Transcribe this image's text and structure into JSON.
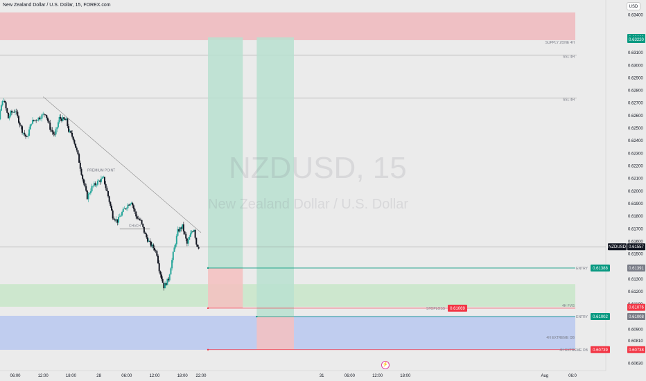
{
  "ui": {
    "currency": "USD",
    "watermark_symbol": "NZDUSD, 15",
    "watermark_desc": "New Zealand Dollar / U.S. Dollar",
    "colors": {
      "background": "#ebebeb",
      "up_candle": "#26a69a",
      "down_candle": "#131722",
      "supply_zone": "#f0b8bd",
      "demand_zone": "#c8e6c9",
      "extreme_ob_zone": "#b8c8f0",
      "profit_zone": "#b8e0d0",
      "loss_zone": "#f5c0c0",
      "entry_tag": "#089981",
      "stop_tag": "#f23645"
    }
  },
  "chart_data": {
    "type": "candlestick",
    "title": "New Zealand Dollar / U.S. Dollar, 15, FOREX.com",
    "symbol": "NZDUSD",
    "timeframe": "15",
    "ylim": [
      0.606,
      0.6342
    ],
    "y_ticks": [
      "0.63400",
      "0.63100",
      "0.63000",
      "0.62900",
      "0.62800",
      "0.62700",
      "0.62600",
      "0.62500",
      "0.62400",
      "0.62300",
      "0.62200",
      "0.62100",
      "0.62000",
      "0.61900",
      "0.61800",
      "0.61700",
      "0.61600",
      "0.61500",
      "0.61300",
      "0.61200",
      "0.61100",
      "0.60900",
      "0.60810",
      "0.60630"
    ],
    "x_ticks": [
      "06:00",
      "12:00",
      "18:00",
      "28",
      "06:00",
      "12:00",
      "18:00",
      "22:00",
      "31",
      "06:00",
      "12:00",
      "18:00",
      "Aug",
      "06:0"
    ],
    "x_tick_hours": [
      6,
      12,
      18,
      24,
      30,
      36,
      42,
      46,
      72,
      78,
      84,
      90,
      120,
      126
    ],
    "candle_hours": [
      0,
      45.5
    ],
    "price_path": [
      [
        0,
        0.621
      ],
      [
        1,
        0.6218
      ],
      [
        2,
        0.6245
      ],
      [
        3,
        0.6268
      ],
      [
        3.5,
        0.6273
      ],
      [
        4.5,
        0.6258
      ],
      [
        5,
        0.6262
      ],
      [
        6,
        0.6264
      ],
      [
        7.5,
        0.6248
      ],
      [
        8.5,
        0.6242
      ],
      [
        9.5,
        0.6255
      ],
      [
        11,
        0.6258
      ],
      [
        12.5,
        0.6262
      ],
      [
        13.5,
        0.625
      ],
      [
        14.5,
        0.6244
      ],
      [
        15.5,
        0.6258
      ],
      [
        17,
        0.6256
      ],
      [
        17.5,
        0.6248
      ],
      [
        18.5,
        0.6242
      ],
      [
        19.5,
        0.6228
      ],
      [
        20.5,
        0.621
      ],
      [
        21.5,
        0.6195
      ],
      [
        22.5,
        0.6203
      ],
      [
        24,
        0.6208
      ],
      [
        25,
        0.621
      ],
      [
        26,
        0.6196
      ],
      [
        27,
        0.618
      ],
      [
        28,
        0.6176
      ],
      [
        29,
        0.6183
      ],
      [
        30,
        0.6188
      ],
      [
        31,
        0.6192
      ],
      [
        32,
        0.618
      ],
      [
        33,
        0.6176
      ],
      [
        34,
        0.6165
      ],
      [
        35,
        0.6158
      ],
      [
        36,
        0.6154
      ],
      [
        36.5,
        0.615
      ],
      [
        37,
        0.6138
      ],
      [
        38,
        0.6124
      ],
      [
        39,
        0.613
      ],
      [
        40,
        0.615
      ],
      [
        41,
        0.6168
      ],
      [
        42,
        0.6172
      ],
      [
        43,
        0.6158
      ],
      [
        44,
        0.6168
      ],
      [
        44.5,
        0.617
      ],
      [
        45,
        0.6158
      ],
      [
        45.5,
        0.61557
      ]
    ],
    "current_price": 0.61557,
    "current_label": "NZDUSD",
    "current_value": "0.61557",
    "trendline": {
      "x1": 12,
      "y1": 0.6275,
      "x2": 46,
      "y2": 0.6167,
      "label": "PREMIUM POINT"
    },
    "choch": {
      "x1": 28.5,
      "x2": 35,
      "y": 0.617,
      "label": "CHoCH"
    },
    "zones": [
      {
        "name": "supply",
        "label": "SUPPLY ZONE 4H",
        "y_top": 0.6342,
        "y_bottom": 0.632,
        "x_start": 0,
        "color": "#f0b8bd"
      },
      {
        "name": "demand",
        "label": "4H FVG",
        "y_top": 0.6126,
        "y_bottom": 0.6108,
        "x_start": 0,
        "color": "#c8e6c9"
      },
      {
        "name": "extreme-ob",
        "label": "4H EXTREME OB",
        "y_top": 0.61008,
        "y_bottom": 0.60738,
        "x_start": 0,
        "color": "#b8c8f0"
      }
    ],
    "levels": [
      {
        "name": "ssl-1",
        "label": "SSL 4H",
        "y": 0.6308
      },
      {
        "name": "ssl-2",
        "label": "SSL 4H",
        "y": 0.6274
      }
    ],
    "positions": [
      {
        "name": "long-1",
        "x_start": 47.5,
        "x_end": 55,
        "entry": 0.61388,
        "target": 0.63222,
        "stop": 0.61069
      },
      {
        "name": "long-2",
        "x_start": 58,
        "x_end": 66,
        "entry": 0.61002,
        "target": 0.63222,
        "stop": 0.60739
      }
    ],
    "annotations": [
      {
        "name": "entry-1-label",
        "text": "ENTRY",
        "value": "0.61388",
        "y": 0.61388,
        "color": "#089981",
        "scale_value": "0.61391",
        "scale_color": "#787b86"
      },
      {
        "name": "stoploss-label",
        "text": "STOPLOSS",
        "value": "0.61069",
        "y": 0.61069,
        "color": "#f23645"
      },
      {
        "name": "entry-2-label",
        "text": "ENTRY",
        "value": "0.61002",
        "y": 0.61002,
        "color": "#089981",
        "scale_value": "0.61008",
        "scale_color": "#787b86"
      },
      {
        "name": "extreme-ob-label",
        "text": "4H EXTREME OB",
        "value": "0.60739",
        "y": 0.60739,
        "color": "#f23645",
        "scale_value": "0.60738",
        "scale_color": "#f23645"
      }
    ],
    "scale_tags": [
      {
        "value": "0.63222",
        "y": 0.63222,
        "color": "#089981"
      },
      {
        "value": "0.63220",
        "y": 0.63205,
        "color": "#089981"
      },
      {
        "value": "0.61076",
        "y": 0.61076,
        "color": "#f23645"
      }
    ]
  }
}
